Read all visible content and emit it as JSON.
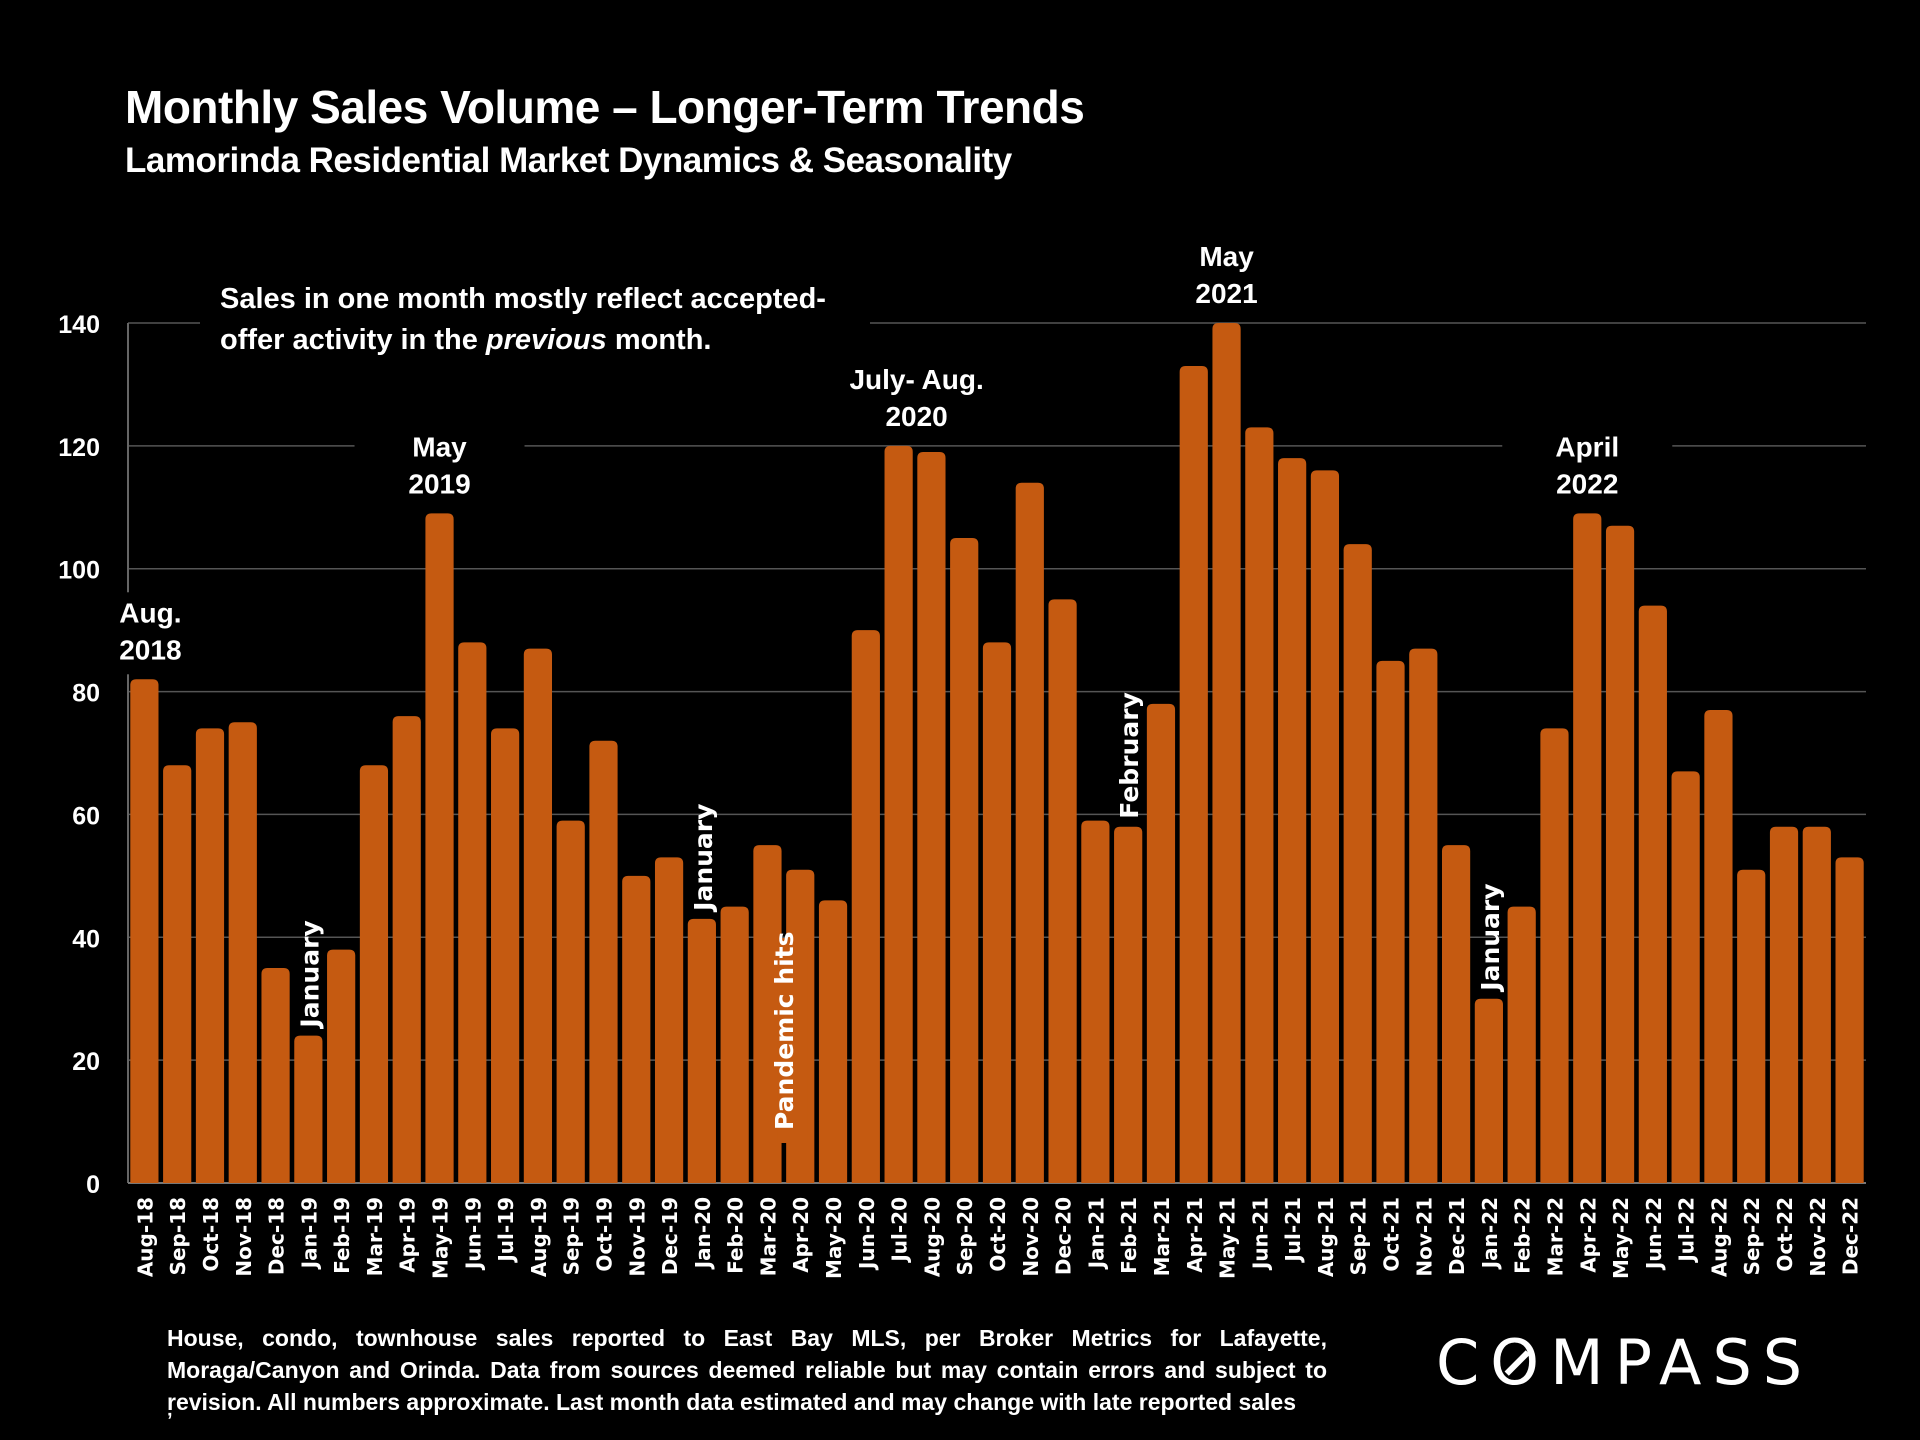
{
  "header": {
    "title": "Monthly Sales Volume – Longer-Term Trends",
    "subtitle": "Lamorinda Residential Market Dynamics & Seasonality"
  },
  "chart_data": {
    "type": "bar",
    "title": "Monthly Sales Volume – Longer-Term Trends",
    "subtitle": "Lamorinda Residential Market Dynamics & Seasonality",
    "xlabel": "",
    "ylabel": "",
    "ylim": [
      0,
      140
    ],
    "yticks": [
      0,
      20,
      40,
      60,
      80,
      100,
      120,
      140
    ],
    "grid": true,
    "legend": "none",
    "bar_color": "#C55A11",
    "categories": [
      "Aug-18",
      "Sep-18",
      "Oct-18",
      "Nov-18",
      "Dec-18",
      "Jan-19",
      "Feb-19",
      "Mar-19",
      "Apr-19",
      "May-19",
      "Jun-19",
      "Jul-19",
      "Aug-19",
      "Sep-19",
      "Oct-19",
      "Nov-19",
      "Dec-19",
      "Jan-20",
      "Feb-20",
      "Mar-20",
      "Apr-20",
      "May-20",
      "Jun-20",
      "Jul-20",
      "Aug-20",
      "Sep-20",
      "Oct-20",
      "Nov-20",
      "Dec-20",
      "Jan-21",
      "Feb-21",
      "Mar-21",
      "Apr-21",
      "May-21",
      "Jun-21",
      "Jul-21",
      "Aug-21",
      "Sep-21",
      "Oct-21",
      "Nov-21",
      "Dec-21",
      "Jan-22",
      "Feb-22",
      "Mar-22",
      "Apr-22",
      "May-22",
      "Jun-22",
      "Jul-22",
      "Aug-22",
      "Sep-22",
      "Oct-22",
      "Nov-22",
      "Dec-22"
    ],
    "values": [
      82,
      68,
      74,
      75,
      35,
      24,
      38,
      68,
      76,
      109,
      88,
      74,
      87,
      59,
      72,
      50,
      53,
      43,
      45,
      55,
      51,
      46,
      90,
      120,
      119,
      105,
      88,
      114,
      95,
      59,
      58,
      78,
      133,
      140,
      123,
      118,
      116,
      104,
      85,
      87,
      55,
      30,
      45,
      74,
      109,
      107,
      94,
      67,
      77,
      51,
      58,
      58,
      53
    ],
    "annotations": [
      {
        "text": [
          "Aug.",
          "2018"
        ],
        "category": "Aug-18",
        "orientation": "horizontal"
      },
      {
        "text": [
          "May",
          "2019"
        ],
        "category": "May-19",
        "orientation": "horizontal"
      },
      {
        "text": [
          "July- Aug.",
          "2020"
        ],
        "category": "Jul-20",
        "orientation": "horizontal"
      },
      {
        "text": [
          "May",
          "2021"
        ],
        "category": "May-21",
        "orientation": "horizontal"
      },
      {
        "text": [
          "April",
          "2022"
        ],
        "category": "Apr-22",
        "orientation": "horizontal"
      },
      {
        "text": [
          "January"
        ],
        "category": "Jan-19",
        "orientation": "vertical"
      },
      {
        "text": [
          "January"
        ],
        "category": "Jan-20",
        "orientation": "vertical"
      },
      {
        "text": [
          "February"
        ],
        "category": "Feb-21",
        "orientation": "vertical"
      },
      {
        "text": [
          "January"
        ],
        "category": "Jan-22",
        "orientation": "vertical"
      },
      {
        "text": [
          "Pandemic hits"
        ],
        "category": "Mar-20",
        "orientation": "vertical-inside"
      }
    ],
    "note": {
      "line1": "Sales in one month mostly reflect accepted-",
      "line2_prefix": "offer activity in the ",
      "line2_italic": "previous",
      "line2_suffix": " month."
    }
  },
  "footer": {
    "footnote": "House, condo, townhouse sales reported to East Bay MLS, per Broker Metrics for Lafayette, Moraga/Canyon and Orinda. Data from sources deemed reliable but may contain errors and subject to revision. All numbers approximate. Last month data estimated and may change with late reported sales",
    "footnote_mark": "ʼ",
    "logo": "COMPASS"
  }
}
